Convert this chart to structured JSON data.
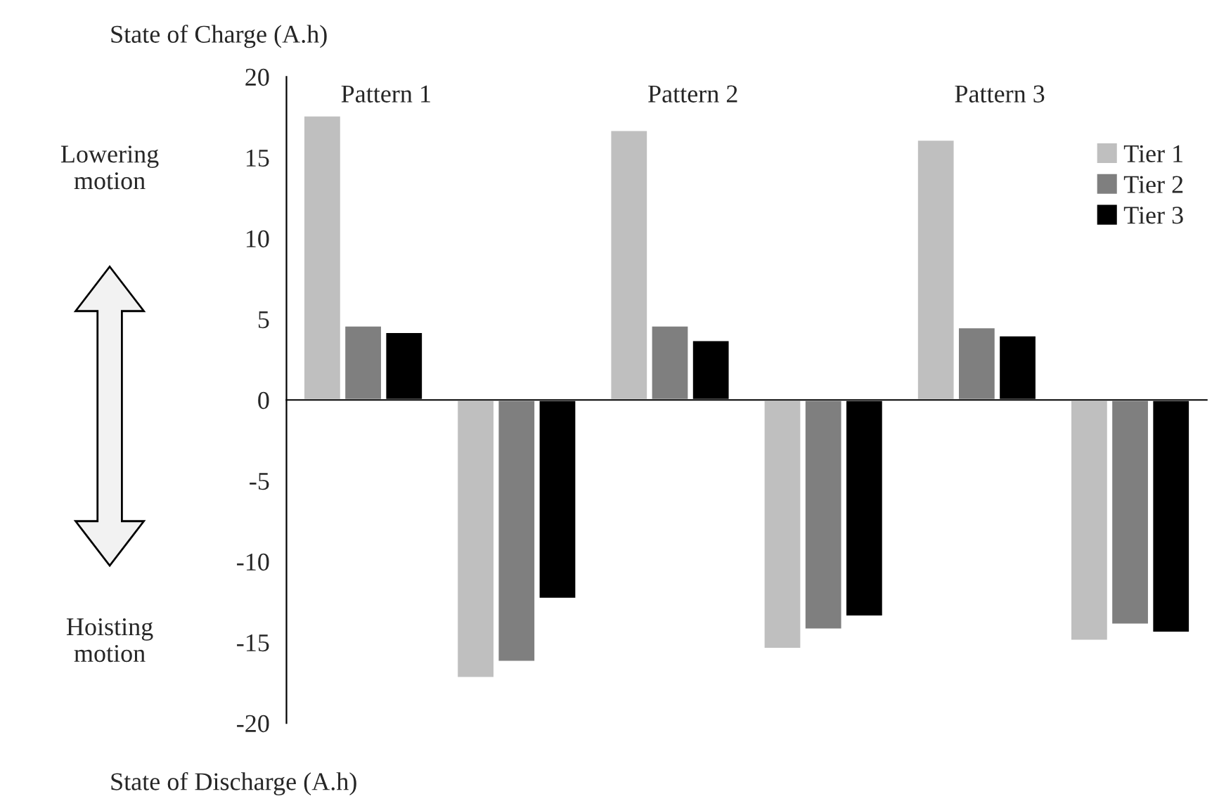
{
  "chart_data": {
    "type": "bar",
    "ylabel": "State of Charge (A.h)",
    "categories": [
      null,
      null,
      null,
      null,
      null,
      null
    ],
    "series": [
      {
        "name": "Tier 1",
        "color": "#bfbfbf",
        "values": [
          17.6,
          -17.2,
          16.7,
          -15.4,
          16.1,
          -14.9
        ]
      },
      {
        "name": "Tier 2",
        "color": "#7f7f7f",
        "values": [
          4.6,
          -16.2,
          4.6,
          -14.2,
          4.5,
          -13.9
        ]
      },
      {
        "name": "Tier 3",
        "color": "#000000",
        "values": [
          4.2,
          -12.3,
          3.7,
          -13.4,
          4.0,
          -14.4
        ]
      }
    ],
    "ylim": [
      -20,
      20
    ],
    "yticks": [
      -20,
      -15,
      -10,
      -5,
      0,
      5,
      10,
      15,
      20
    ],
    "tick_labels": "y",
    "legend": "right",
    "annotations": [
      "Pattern 1",
      "Pattern 2",
      "Pattern 3",
      "Lowering\nmotion",
      "Hoisting\nmotion",
      "State of Discharge (A.h)"
    ]
  }
}
